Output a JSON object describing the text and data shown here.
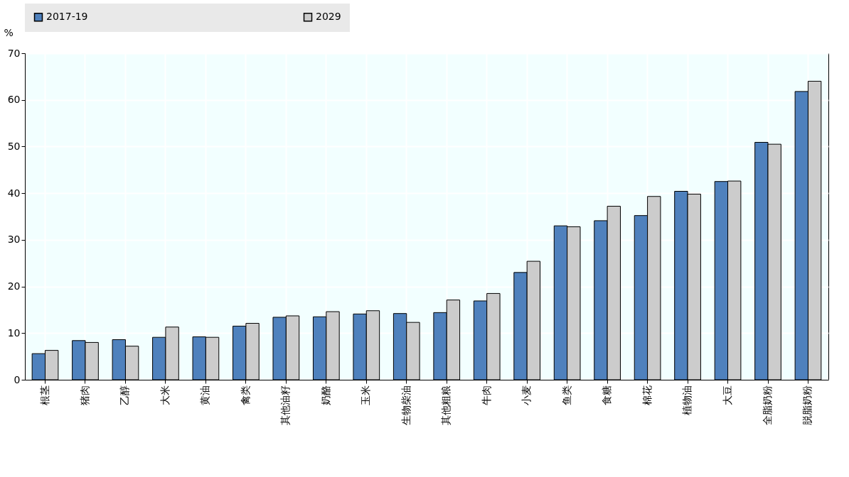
{
  "chart_data": {
    "type": "bar",
    "ylabel": "%",
    "categories": [
      "根茎",
      "猪肉",
      "乙醇",
      "大米",
      "黄油",
      "禽类",
      "其他油籽",
      "奶酪",
      "玉米",
      "生物柴油",
      "其他粗粮",
      "牛肉",
      "小麦",
      "鱼类",
      "食糖",
      "棉花",
      "植物油",
      "大豆",
      "全脂奶粉",
      "脱脂奶粉"
    ],
    "series": [
      {
        "name": "2017-19",
        "color": "#4f81bd",
        "values": [
          5.6,
          8.4,
          8.6,
          9.1,
          9.2,
          11.5,
          13.4,
          13.5,
          14.1,
          14.2,
          14.4,
          16.9,
          23.0,
          33.0,
          34.1,
          35.2,
          40.4,
          42.5,
          50.9,
          61.8
        ]
      },
      {
        "name": "2029",
        "color": "#cccccc",
        "values": [
          6.3,
          8.0,
          7.2,
          11.3,
          9.1,
          12.1,
          13.7,
          14.6,
          14.8,
          12.3,
          17.1,
          18.5,
          25.4,
          32.8,
          37.2,
          39.3,
          39.8,
          42.6,
          50.5,
          64.0
        ]
      }
    ],
    "ylim": [
      0,
      70
    ],
    "yticks": [
      0,
      10,
      20,
      30,
      40,
      50,
      60,
      70
    ],
    "grid": true,
    "legend": "top"
  }
}
